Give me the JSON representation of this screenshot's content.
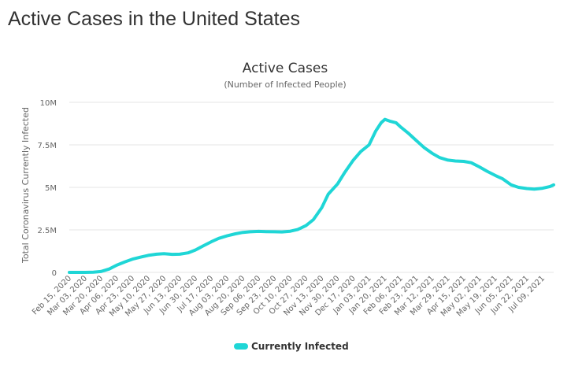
{
  "page": {
    "header": "Active Cases in the United States"
  },
  "chart_data": {
    "type": "line",
    "title": "Active Cases",
    "subtitle": "(Number of Infected People)",
    "ylabel": "Total Coronavirus Currently Infected",
    "xlabel": "",
    "ylim": [
      0,
      10000000
    ],
    "yticks": [
      {
        "value": 0,
        "label": "0"
      },
      {
        "value": 2500000,
        "label": "2.5M"
      },
      {
        "value": 5000000,
        "label": "5M"
      },
      {
        "value": 7500000,
        "label": "7.5M"
      },
      {
        "value": 10000000,
        "label": "10M"
      }
    ],
    "categories": [
      "Feb 15, 2020",
      "Mar 03, 2020",
      "Mar 20, 2020",
      "Apr 06, 2020",
      "Apr 23, 2020",
      "May 10, 2020",
      "May 27, 2020",
      "Jun 13, 2020",
      "Jun 30, 2020",
      "Jul 17, 2020",
      "Aug 03, 2020",
      "Aug 20, 2020",
      "Sep 06, 2020",
      "Sep 23, 2020",
      "Oct 10, 2020",
      "Oct 27, 2020",
      "Nov 13, 2020",
      "Nov 30, 2020",
      "Dec 17, 2020",
      "Jan 03, 2021",
      "Jan 20, 2021",
      "Feb 06, 2021",
      "Feb 23, 2021",
      "Mar 12, 2021",
      "Mar 29, 2021",
      "Apr 15, 2021",
      "May 02, 2021",
      "May 19, 2021",
      "Jun 05, 2021",
      "Jun 22, 2021",
      "Jul 09, 2021"
    ],
    "series": [
      {
        "name": "Currently Infected",
        "color": "#1fd6d6",
        "points": [
          [
            "Feb 15, 2020",
            0
          ],
          [
            "Mar 03, 2020",
            0
          ],
          [
            "Mar 12, 2020",
            10000
          ],
          [
            "Mar 20, 2020",
            50000
          ],
          [
            "Mar 29, 2020",
            200000
          ],
          [
            "Apr 06, 2020",
            420000
          ],
          [
            "Apr 15, 2020",
            620000
          ],
          [
            "Apr 23, 2020",
            780000
          ],
          [
            "May 02, 2020",
            900000
          ],
          [
            "May 10, 2020",
            1000000
          ],
          [
            "May 19, 2020",
            1070000
          ],
          [
            "May 27, 2020",
            1100000
          ],
          [
            "Jun 05, 2020",
            1060000
          ],
          [
            "Jun 13, 2020",
            1070000
          ],
          [
            "Jun 22, 2020",
            1150000
          ],
          [
            "Jun 30, 2020",
            1320000
          ],
          [
            "Jul 08, 2020",
            1550000
          ],
          [
            "Jul 17, 2020",
            1800000
          ],
          [
            "Jul 25, 2020",
            2000000
          ],
          [
            "Aug 03, 2020",
            2150000
          ],
          [
            "Aug 12, 2020",
            2270000
          ],
          [
            "Aug 20, 2020",
            2350000
          ],
          [
            "Aug 28, 2020",
            2390000
          ],
          [
            "Sep 06, 2020",
            2410000
          ],
          [
            "Sep 14, 2020",
            2400000
          ],
          [
            "Sep 23, 2020",
            2390000
          ],
          [
            "Oct 01, 2020",
            2380000
          ],
          [
            "Oct 10, 2020",
            2420000
          ],
          [
            "Oct 18, 2020",
            2520000
          ],
          [
            "Oct 27, 2020",
            2750000
          ],
          [
            "Nov 04, 2020",
            3100000
          ],
          [
            "Nov 13, 2020",
            3800000
          ],
          [
            "Nov 20, 2020",
            4600000
          ],
          [
            "Nov 30, 2020",
            5200000
          ],
          [
            "Dec 08, 2020",
            5900000
          ],
          [
            "Dec 17, 2020",
            6600000
          ],
          [
            "Dec 25, 2020",
            7100000
          ],
          [
            "Jan 03, 2021",
            7500000
          ],
          [
            "Jan 10, 2021",
            8300000
          ],
          [
            "Jan 16, 2021",
            8800000
          ],
          [
            "Jan 20, 2021",
            9000000
          ],
          [
            "Jan 25, 2021",
            8900000
          ],
          [
            "Feb 01, 2021",
            8800000
          ],
          [
            "Feb 06, 2021",
            8550000
          ],
          [
            "Feb 14, 2021",
            8200000
          ],
          [
            "Feb 23, 2021",
            7750000
          ],
          [
            "Mar 03, 2021",
            7350000
          ],
          [
            "Mar 12, 2021",
            7000000
          ],
          [
            "Mar 20, 2021",
            6750000
          ],
          [
            "Mar 29, 2021",
            6600000
          ],
          [
            "Apr 06, 2021",
            6550000
          ],
          [
            "Apr 15, 2021",
            6530000
          ],
          [
            "Apr 23, 2021",
            6450000
          ],
          [
            "May 02, 2021",
            6200000
          ],
          [
            "May 10, 2021",
            5950000
          ],
          [
            "May 19, 2021",
            5700000
          ],
          [
            "May 27, 2021",
            5500000
          ],
          [
            "Jun 05, 2021",
            5150000
          ],
          [
            "Jun 13, 2021",
            5000000
          ],
          [
            "Jun 22, 2021",
            4930000
          ],
          [
            "Jun 30, 2021",
            4900000
          ],
          [
            "Jul 09, 2021",
            4950000
          ],
          [
            "Jul 17, 2021",
            5050000
          ],
          [
            "Jul 24, 2021",
            5150000
          ]
        ]
      }
    ],
    "legend": "bottom-center",
    "grid": true
  }
}
